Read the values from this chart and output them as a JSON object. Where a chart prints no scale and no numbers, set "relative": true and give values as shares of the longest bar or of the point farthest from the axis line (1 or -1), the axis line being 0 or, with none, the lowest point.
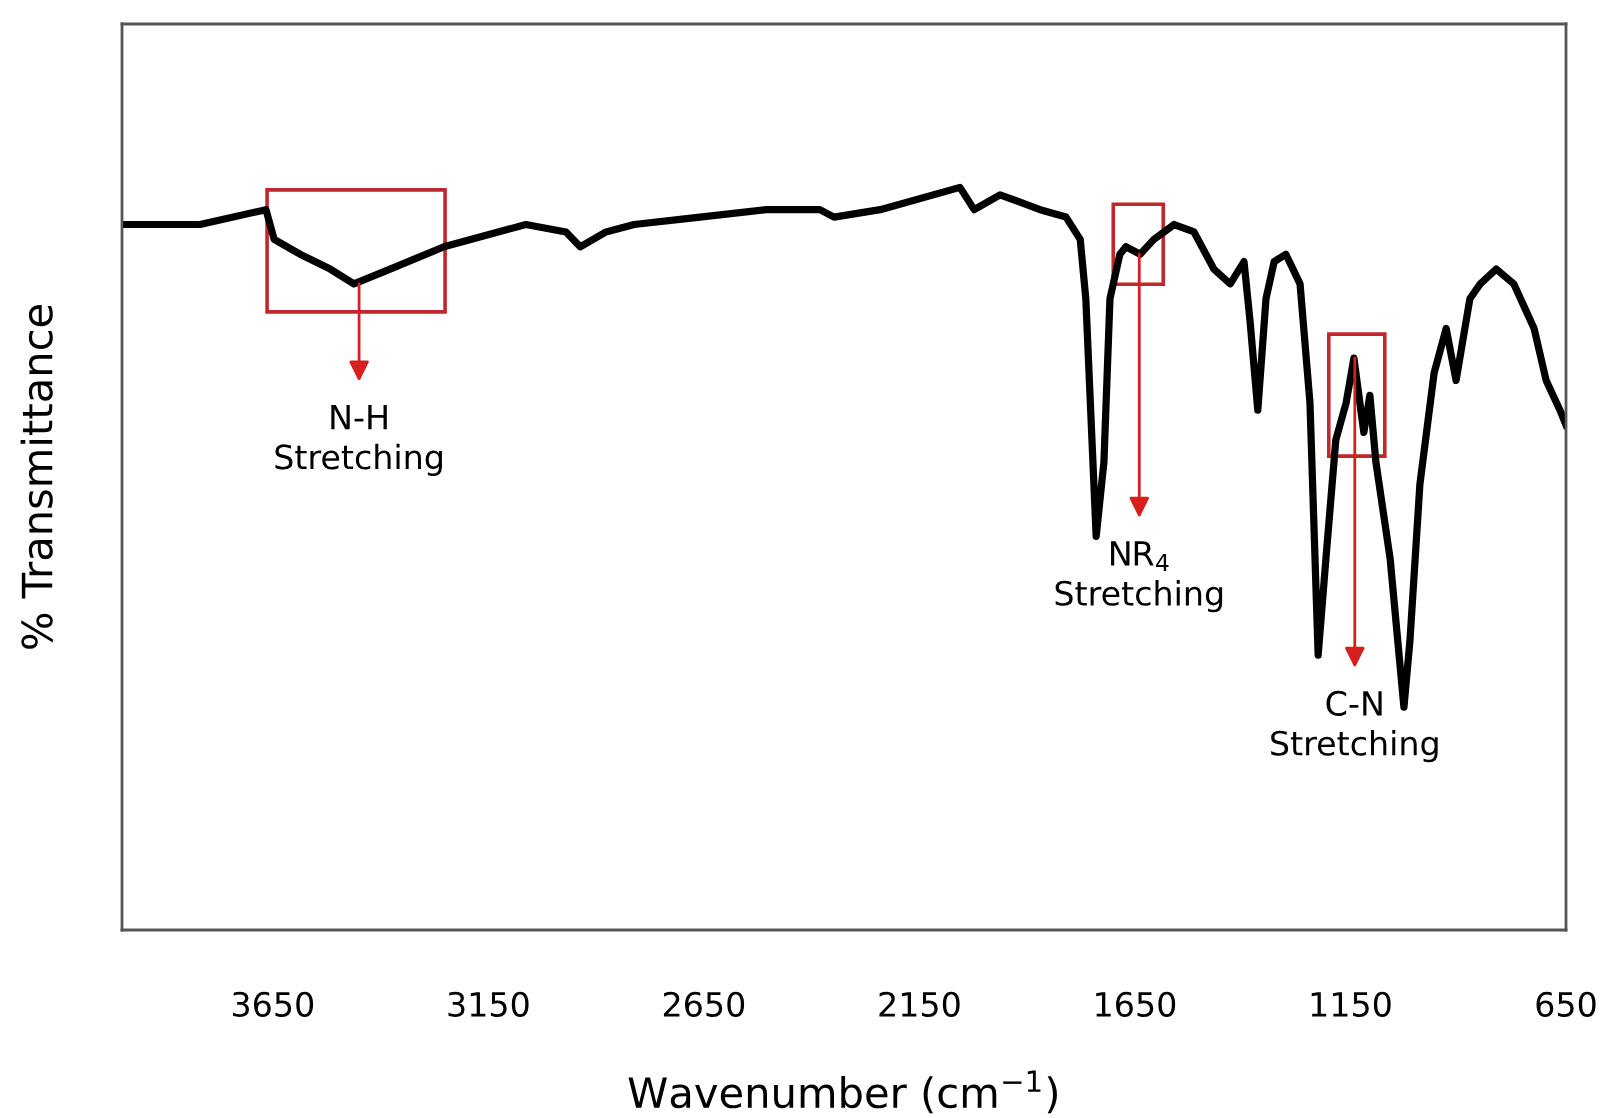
{
  "chart_data": {
    "type": "line",
    "relative": true,
    "xlabel": "Wavenumber (cm$^{−1}$)",
    "ylabel": "% Transmittance",
    "xlim": [
      4000,
      650
    ],
    "xticks": [
      3650,
      3150,
      2650,
      2150,
      1650,
      1150,
      650
    ],
    "tick_labels": "x",
    "grid": false,
    "line_style": "solid",
    "x": [
      3995,
      3819,
      3666,
      3647,
      3587,
      3517,
      3462,
      3378,
      3253,
      3063,
      2970,
      2937,
      2877,
      2812,
      2659,
      2506,
      2381,
      2348,
      2241,
      2056,
      2023,
      1963,
      1870,
      1810,
      1777,
      1764,
      1740,
      1722,
      1708,
      1685,
      1671,
      1638,
      1606,
      1559,
      1513,
      1467,
      1429,
      1397,
      1383,
      1365,
      1346,
      1327,
      1300,
      1267,
      1244,
      1225,
      1207,
      1184,
      1160,
      1142,
      1119,
      1105,
      1091,
      1058,
      1026,
      1012,
      989,
      956,
      928,
      905,
      873,
      849,
      812,
      771,
      724,
      696,
      664,
      650
    ],
    "series": [
      {
        "color": "#000000",
        "values": [
          0.95,
          0.95,
          0.97,
          0.93,
          0.91,
          0.89,
          0.87,
          0.89,
          0.92,
          0.95,
          0.94,
          0.92,
          0.94,
          0.95,
          0.96,
          0.97,
          0.97,
          0.96,
          0.97,
          1.0,
          0.97,
          0.99,
          0.97,
          0.96,
          0.93,
          0.85,
          0.53,
          0.63,
          0.85,
          0.91,
          0.92,
          0.91,
          0.93,
          0.95,
          0.94,
          0.89,
          0.87,
          0.9,
          0.82,
          0.7,
          0.85,
          0.9,
          0.91,
          0.87,
          0.71,
          0.37,
          0.5,
          0.66,
          0.71,
          0.77,
          0.67,
          0.72,
          0.63,
          0.5,
          0.3,
          0.39,
          0.6,
          0.75,
          0.81,
          0.74,
          0.85,
          0.87,
          0.89,
          0.87,
          0.81,
          0.74,
          0.7,
          0.68
        ]
      }
    ],
    "annotations": [
      {
        "text": "N-H\nStretching",
        "x": 3450,
        "y": 0.87
      },
      {
        "text": "NR$_{4}$\nStretching",
        "x": 1640,
        "y": 0.91
      },
      {
        "text": "C-N\nStretching",
        "x": 1140,
        "y": 0.77
      }
    ]
  }
}
